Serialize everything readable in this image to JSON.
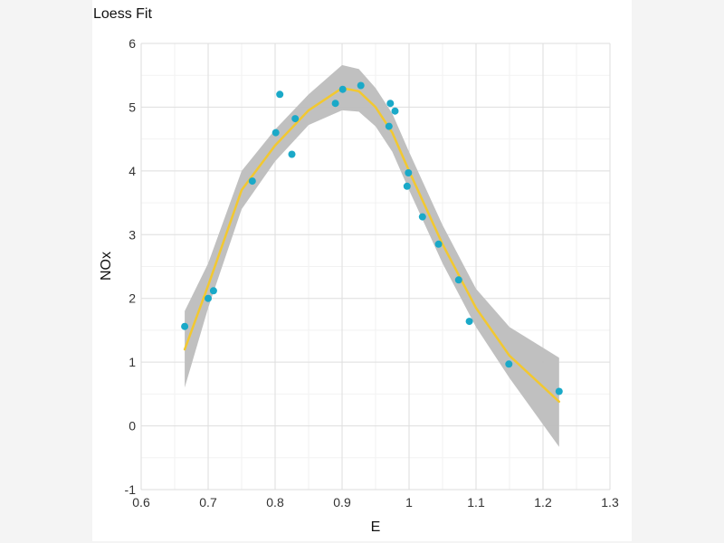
{
  "chart_data": {
    "type": "scatter",
    "title": "Loess Fit",
    "xlabel": "E",
    "ylabel": "NOx",
    "xlim": [
      0.6,
      1.3
    ],
    "ylim": [
      -1,
      6
    ],
    "xticks": [
      "0.6",
      "0.7",
      "0.8",
      "0.9",
      "1",
      "1.1",
      "1.2",
      "1.3"
    ],
    "yticks": [
      "-1",
      "0",
      "1",
      "2",
      "3",
      "4",
      "5",
      "6"
    ],
    "grid": true,
    "colors": {
      "points": "#1aa9c8",
      "fit": "#f2c830",
      "band": "#bdbdbd"
    },
    "points": {
      "x": [
        0.665,
        0.7,
        0.708,
        0.766,
        0.801,
        0.807,
        0.825,
        0.83,
        0.89,
        0.901,
        0.928,
        0.97,
        0.972,
        0.979,
        0.997,
        0.999,
        1.02,
        1.044,
        1.074,
        1.09,
        1.149,
        1.224
      ],
      "y": [
        1.56,
        2.0,
        2.12,
        3.84,
        4.6,
        5.2,
        4.26,
        4.82,
        5.06,
        5.28,
        5.34,
        4.7,
        5.06,
        4.94,
        3.76,
        3.97,
        3.28,
        2.85,
        2.29,
        1.64,
        0.97,
        0.54
      ]
    },
    "fit": {
      "x": [
        0.665,
        0.7,
        0.75,
        0.8,
        0.85,
        0.9,
        0.925,
        0.95,
        0.975,
        1.0,
        1.05,
        1.1,
        1.15,
        1.224
      ],
      "y": [
        1.2,
        2.2,
        3.7,
        4.4,
        4.95,
        5.3,
        5.25,
        5.0,
        4.6,
        4.0,
        2.85,
        1.85,
        1.1,
        0.38
      ],
      "lower": [
        0.6,
        1.85,
        3.4,
        4.15,
        4.72,
        4.95,
        4.93,
        4.7,
        4.3,
        3.7,
        2.55,
        1.55,
        0.75,
        -0.33
      ],
      "upper": [
        1.8,
        2.55,
        4.0,
        4.65,
        5.2,
        5.66,
        5.6,
        5.3,
        4.9,
        4.3,
        3.15,
        2.15,
        1.55,
        1.07
      ]
    }
  }
}
